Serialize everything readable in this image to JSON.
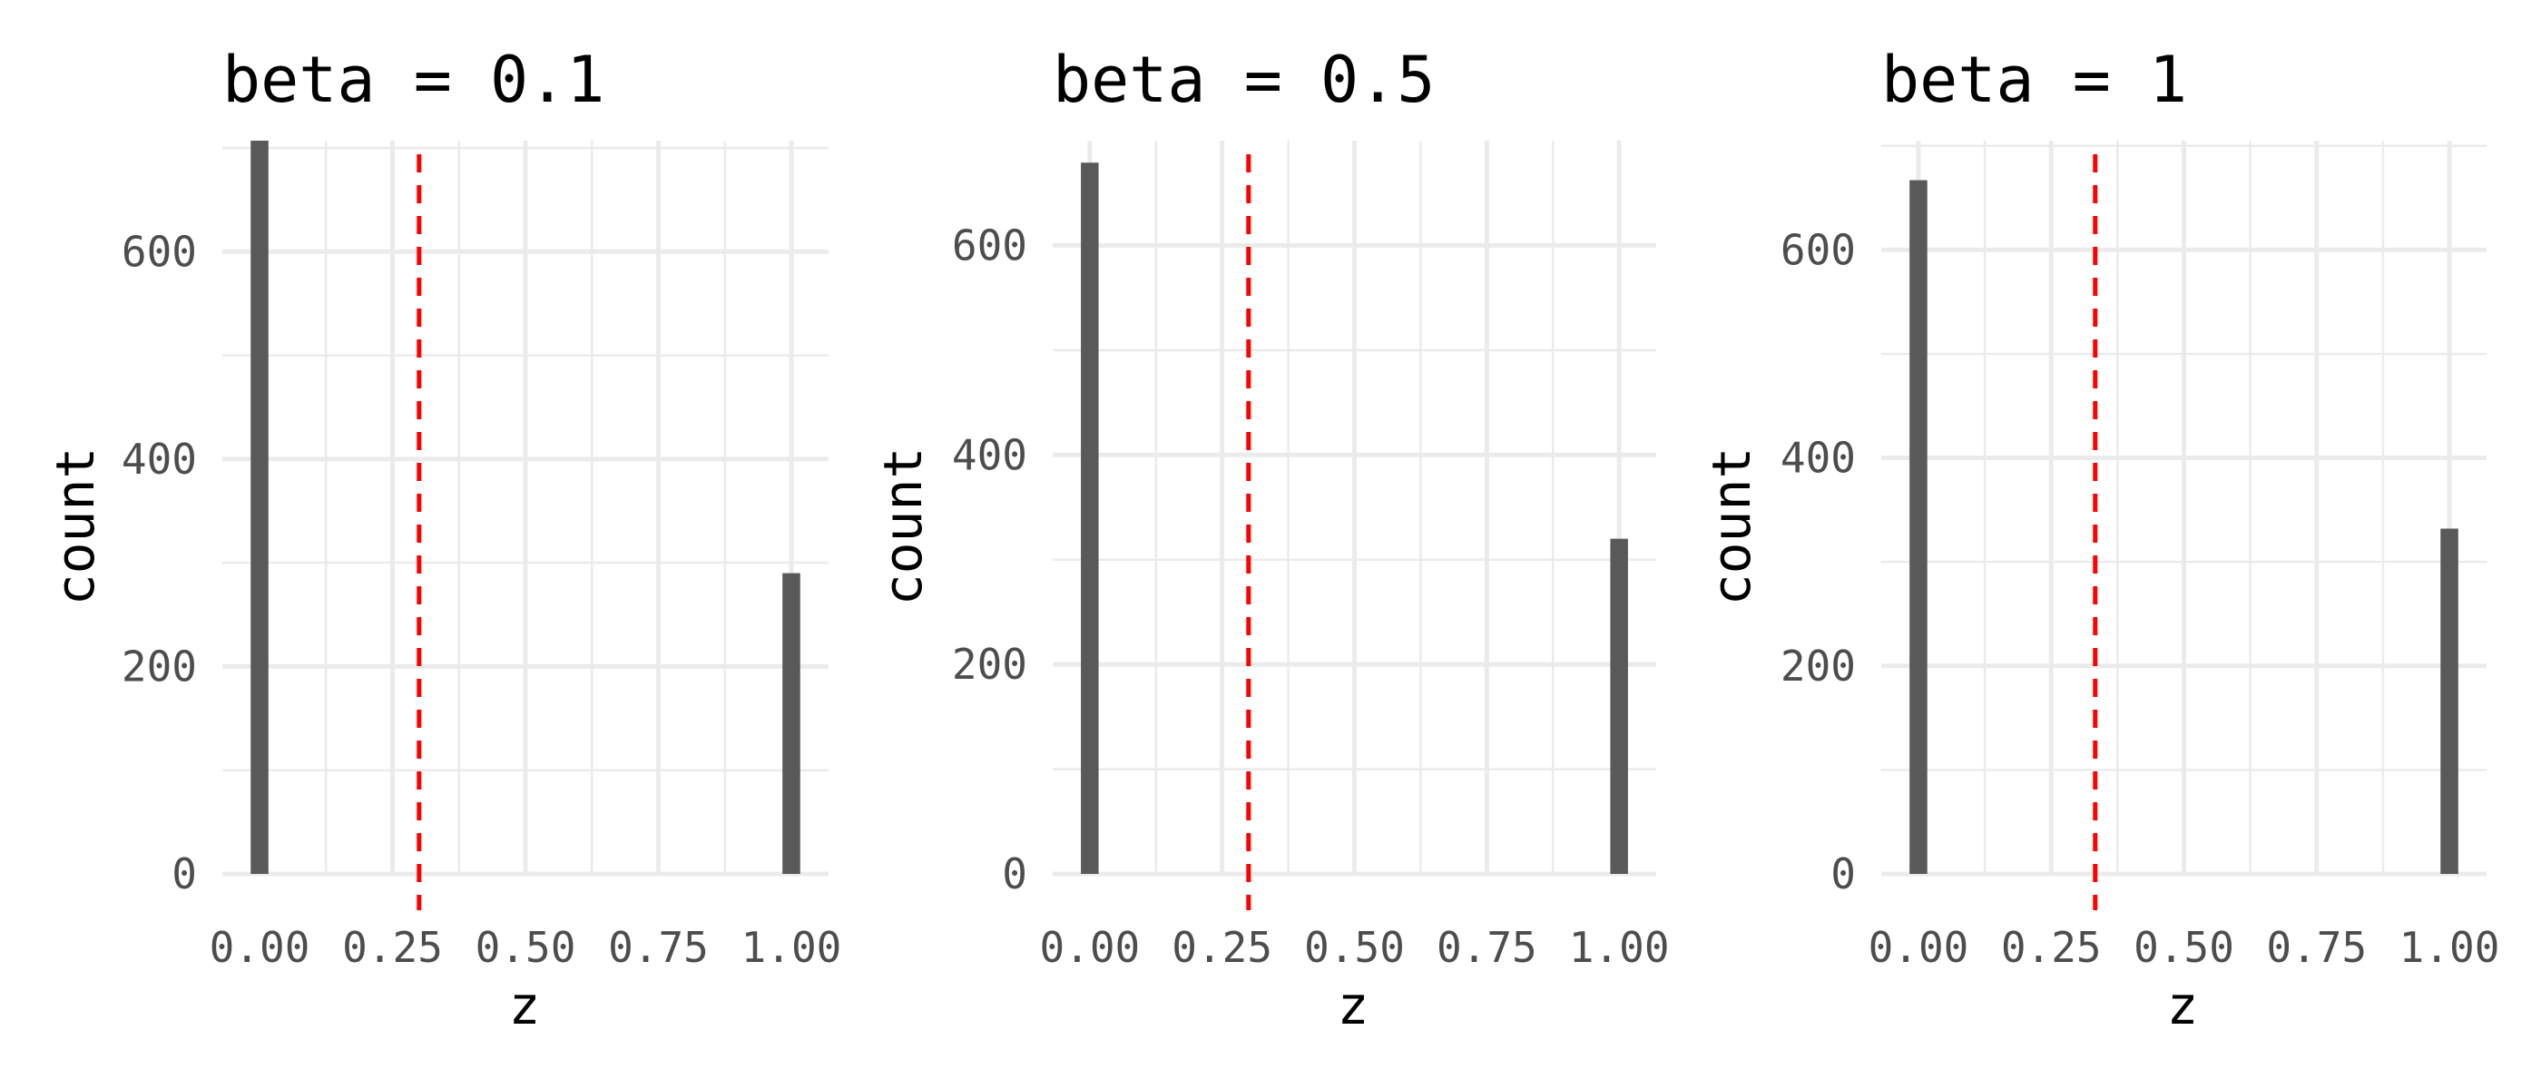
{
  "chart_data": [
    {
      "type": "bar",
      "title": "beta = 0.1",
      "xlabel": "z",
      "ylabel": "count",
      "x": [
        0,
        1
      ],
      "values": [
        707,
        290
      ],
      "xlim": [
        -0.07,
        1.07
      ],
      "ylim": [
        0,
        707
      ],
      "x_ticks": [
        "0.00",
        "0.25",
        "0.50",
        "0.75",
        "1.00"
      ],
      "y_ticks": [
        "0",
        "200",
        "400",
        "600"
      ],
      "vline": {
        "x": 0.3,
        "color": "#ff0000",
        "style": "dashed"
      },
      "grid": true,
      "bar_color": "#595959"
    },
    {
      "type": "bar",
      "title": "beta = 0.5",
      "xlabel": "z",
      "ylabel": "count",
      "x": [
        0,
        1
      ],
      "values": [
        679,
        320
      ],
      "xlim": [
        -0.07,
        1.07
      ],
      "ylim": [
        0,
        700
      ],
      "x_ticks": [
        "0.00",
        "0.25",
        "0.50",
        "0.75",
        "1.00"
      ],
      "y_ticks": [
        "0",
        "200",
        "400",
        "600"
      ],
      "vline": {
        "x": 0.3,
        "color": "#ff0000",
        "style": "dashed"
      },
      "grid": true,
      "bar_color": "#595959"
    },
    {
      "type": "bar",
      "title": "beta = 1",
      "xlabel": "z",
      "ylabel": "count",
      "x": [
        0,
        1
      ],
      "values": [
        667,
        332
      ],
      "xlim": [
        -0.07,
        1.07
      ],
      "ylim": [
        0,
        705
      ],
      "x_ticks": [
        "0.00",
        "0.25",
        "0.50",
        "0.75",
        "1.00"
      ],
      "y_ticks": [
        "0",
        "200",
        "400",
        "600"
      ],
      "vline": {
        "x": 0.333,
        "color": "#ff0000",
        "style": "dashed"
      },
      "grid": true,
      "bar_color": "#595959"
    }
  ]
}
